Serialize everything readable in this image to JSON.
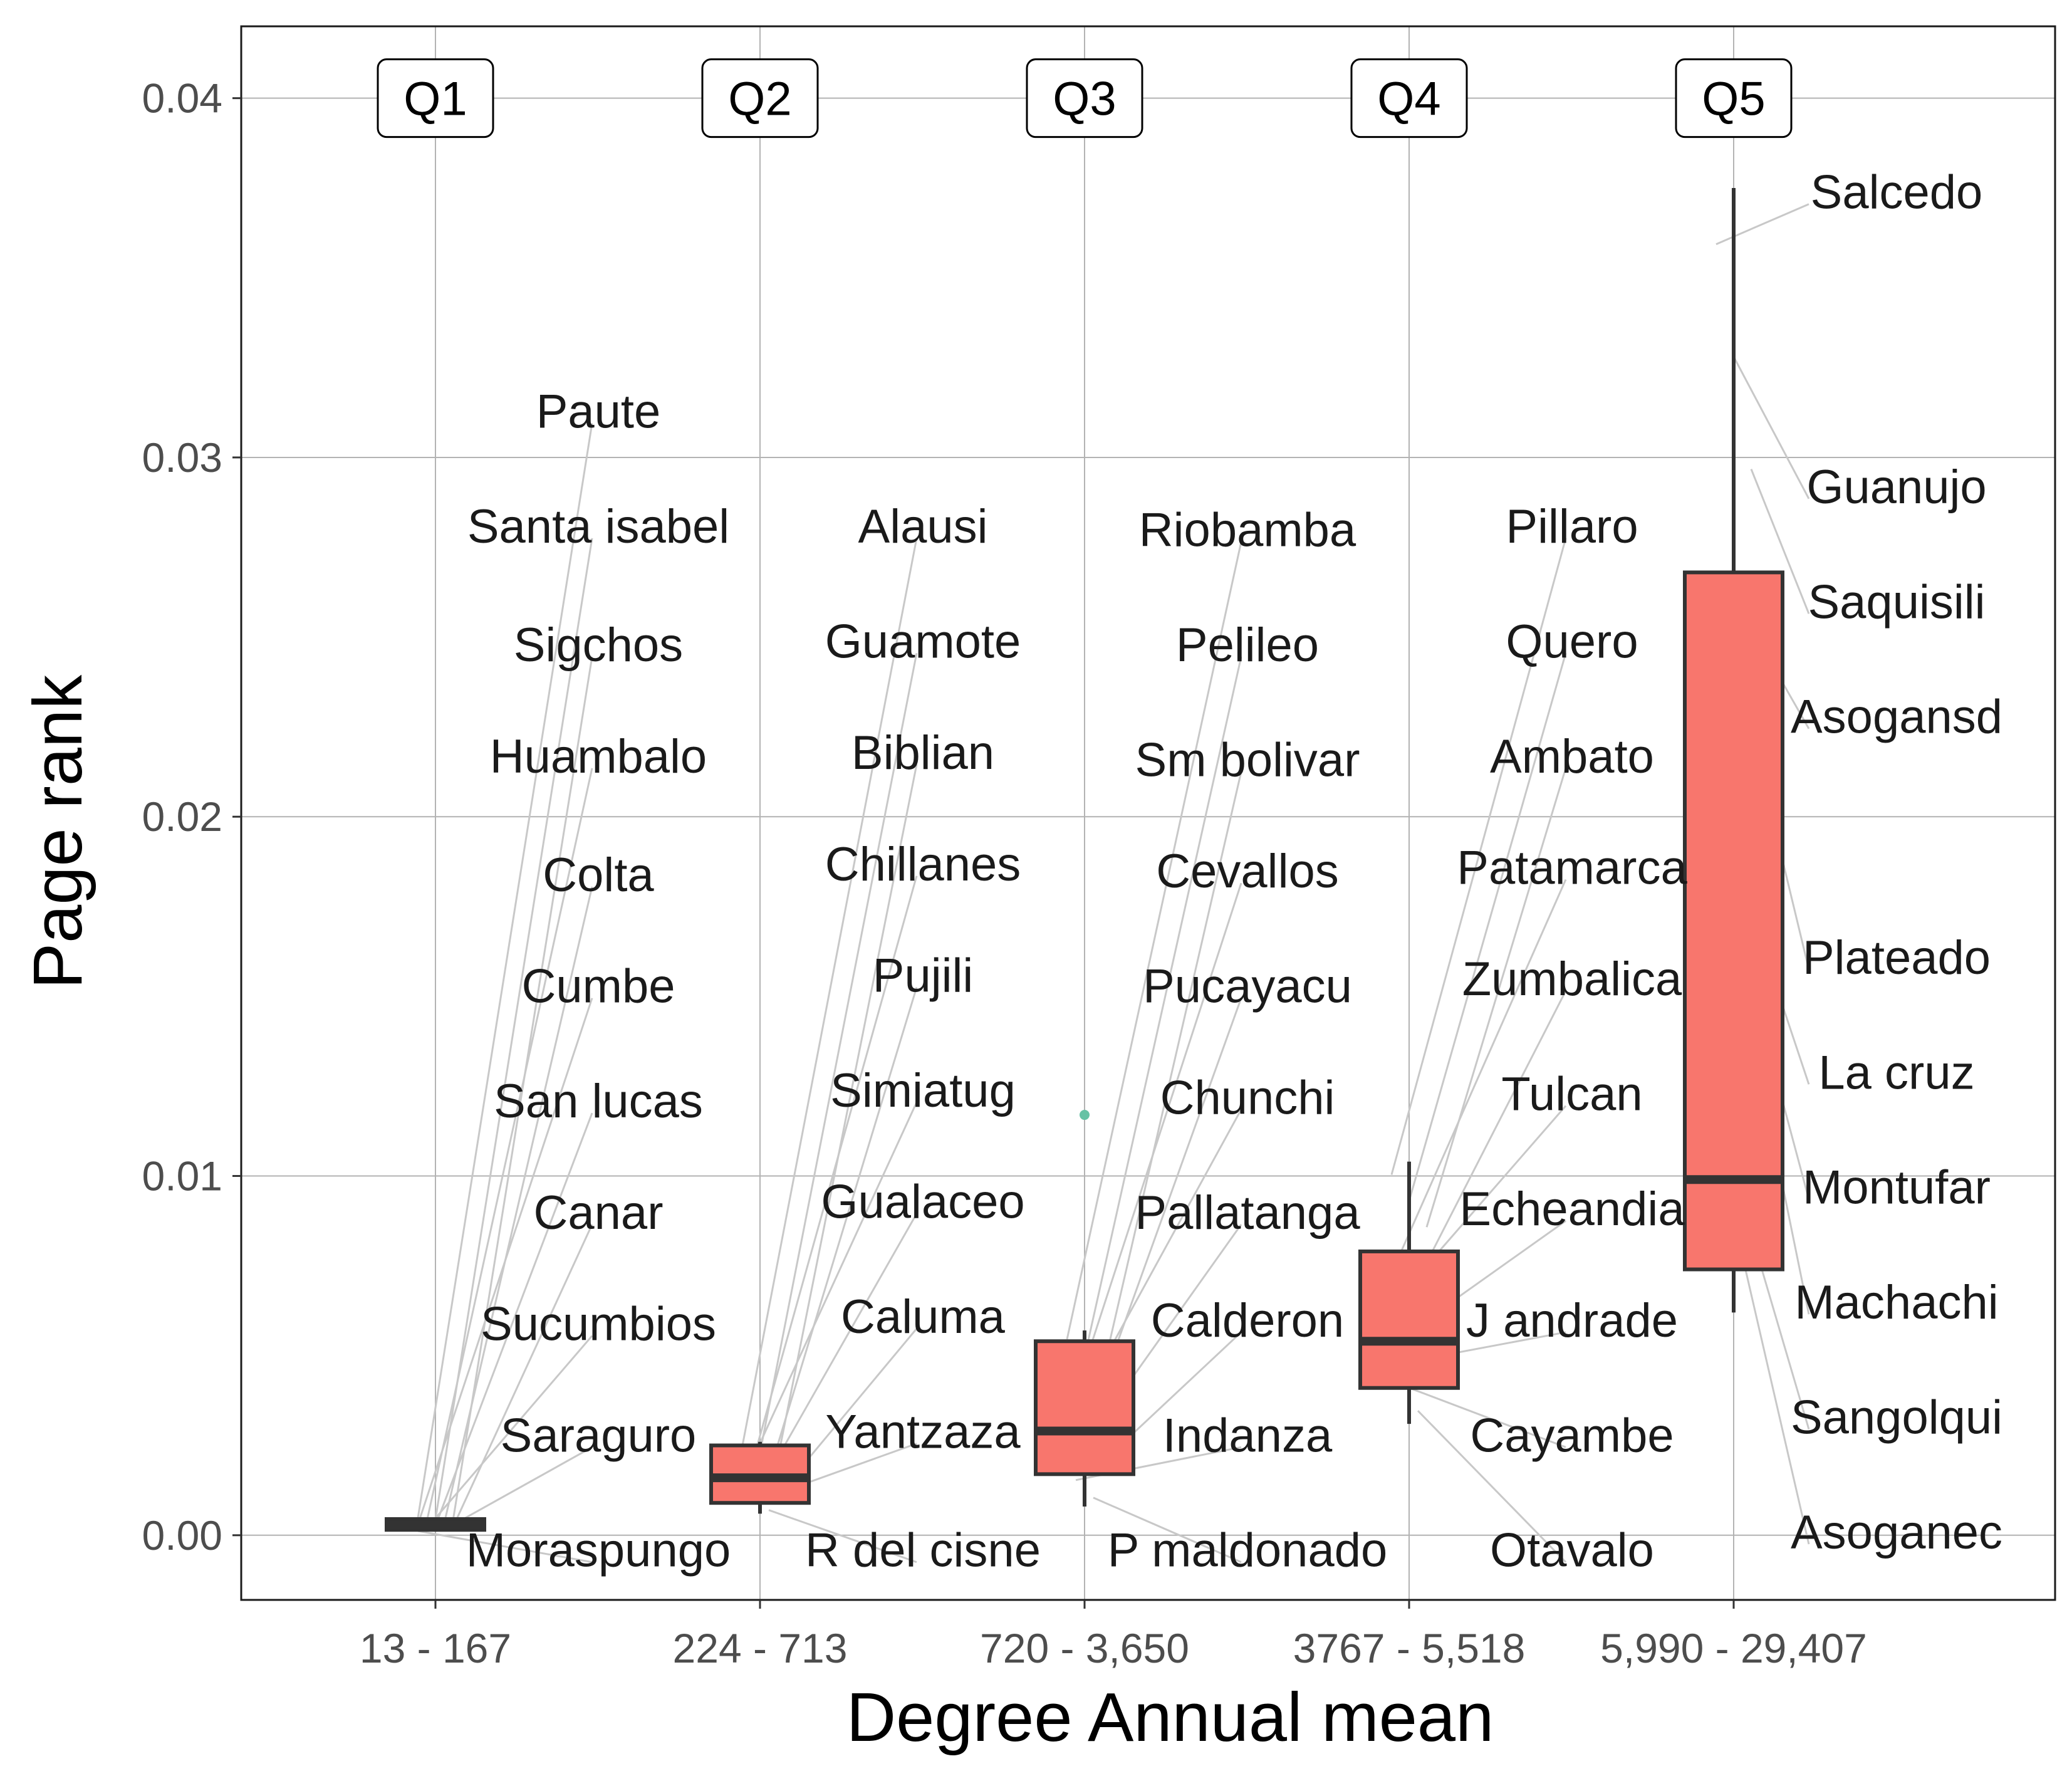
{
  "chart_data": {
    "type": "box",
    "xlabel": "Degree Annual mean",
    "ylabel": "Page rank",
    "ylim": [
      -0.0018,
      0.042
    ],
    "yticks": [
      "0.00",
      "0.01",
      "0.02",
      "0.03",
      "0.04"
    ],
    "ytick_values": [
      0.0,
      0.01,
      0.02,
      0.03,
      0.04
    ],
    "grid": true,
    "categories": [
      "13 - 167",
      "224 - 713",
      "720 - 3,650",
      "3767 - 5,518",
      "5,990 - 29,407"
    ],
    "quintile_labels": [
      "Q1",
      "Q2",
      "Q3",
      "Q4",
      "Q5"
    ],
    "box_color": "#F8766D",
    "outlier_color": "#66C2A5",
    "boxes": [
      {
        "q1": 0.00015,
        "median": 0.00028,
        "q3": 0.00045,
        "lower": 0.0001,
        "upper": 0.0005,
        "outliers": []
      },
      {
        "q1": 0.0009,
        "median": 0.0016,
        "q3": 0.0025,
        "lower": 0.0006,
        "upper": 0.0026,
        "outliers": []
      },
      {
        "q1": 0.0017,
        "median": 0.0029,
        "q3": 0.0054,
        "lower": 0.0008,
        "upper": 0.0057,
        "outliers": [
          0.0117
        ]
      },
      {
        "q1": 0.0041,
        "median": 0.0054,
        "q3": 0.0079,
        "lower": 0.0031,
        "upper": 0.0104,
        "outliers": []
      },
      {
        "q1": 0.0074,
        "median": 0.0099,
        "q3": 0.0268,
        "lower": 0.0062,
        "upper": 0.0375,
        "outliers": []
      }
    ],
    "point_labels": [
      {
        "group": 0,
        "names": [
          "Paute",
          "Santa isabel",
          "Sigchos",
          "Huambalo",
          "Colta",
          "Cumbe",
          "San lucas",
          "Canar",
          "Sucumbios",
          "Saraguro",
          "Moraspungo"
        ],
        "label_y": [
          0.0313,
          0.0281,
          0.0248,
          0.0217,
          0.0184,
          0.0153,
          0.0121,
          0.009,
          0.0059,
          0.0028,
          -0.0004
        ]
      },
      {
        "group": 1,
        "names": [
          "Alausi",
          "Guamote",
          "Biblian",
          "Chillanes",
          "Pujili",
          "Simiatug",
          "Gualaceo",
          "Caluma",
          "Yantzaza",
          "R del cisne"
        ],
        "label_y": [
          0.0281,
          0.0249,
          0.0218,
          0.0187,
          0.0156,
          0.0124,
          0.0093,
          0.0061,
          0.0029,
          -0.0004
        ]
      },
      {
        "group": 2,
        "names": [
          "Riobamba",
          "Pelileo",
          "Sm bolivar",
          "Cevallos",
          "Pucayacu",
          "Chunchi",
          "Pallatanga",
          "Calderon",
          "Indanza",
          "P maldonado"
        ],
        "label_y": [
          0.028,
          0.0248,
          0.0216,
          0.0185,
          0.0153,
          0.0122,
          0.009,
          0.006,
          0.0028,
          -0.0004
        ]
      },
      {
        "group": 3,
        "names": [
          "Pillaro",
          "Quero",
          "Ambato",
          "Patamarca",
          "Zumbalica",
          "Tulcan",
          "Echeandia",
          "J andrade",
          "Cayambe",
          "Otavalo"
        ],
        "label_y": [
          0.0281,
          0.0249,
          0.0217,
          0.0186,
          0.0155,
          0.0123,
          0.0091,
          0.006,
          0.0028,
          -0.0004
        ]
      },
      {
        "group": 4,
        "names": [
          "Salcedo",
          "Guanujo",
          "Saquisili",
          "Asogansd",
          "Plateado",
          "La cruz",
          "Montufar",
          "Machachi",
          "Sangolqui",
          "Asoganec"
        ],
        "label_y": [
          0.0374,
          0.0292,
          0.026,
          0.0228,
          0.0161,
          0.0129,
          0.0097,
          0.0065,
          0.0033,
          0.0001
        ]
      }
    ]
  }
}
